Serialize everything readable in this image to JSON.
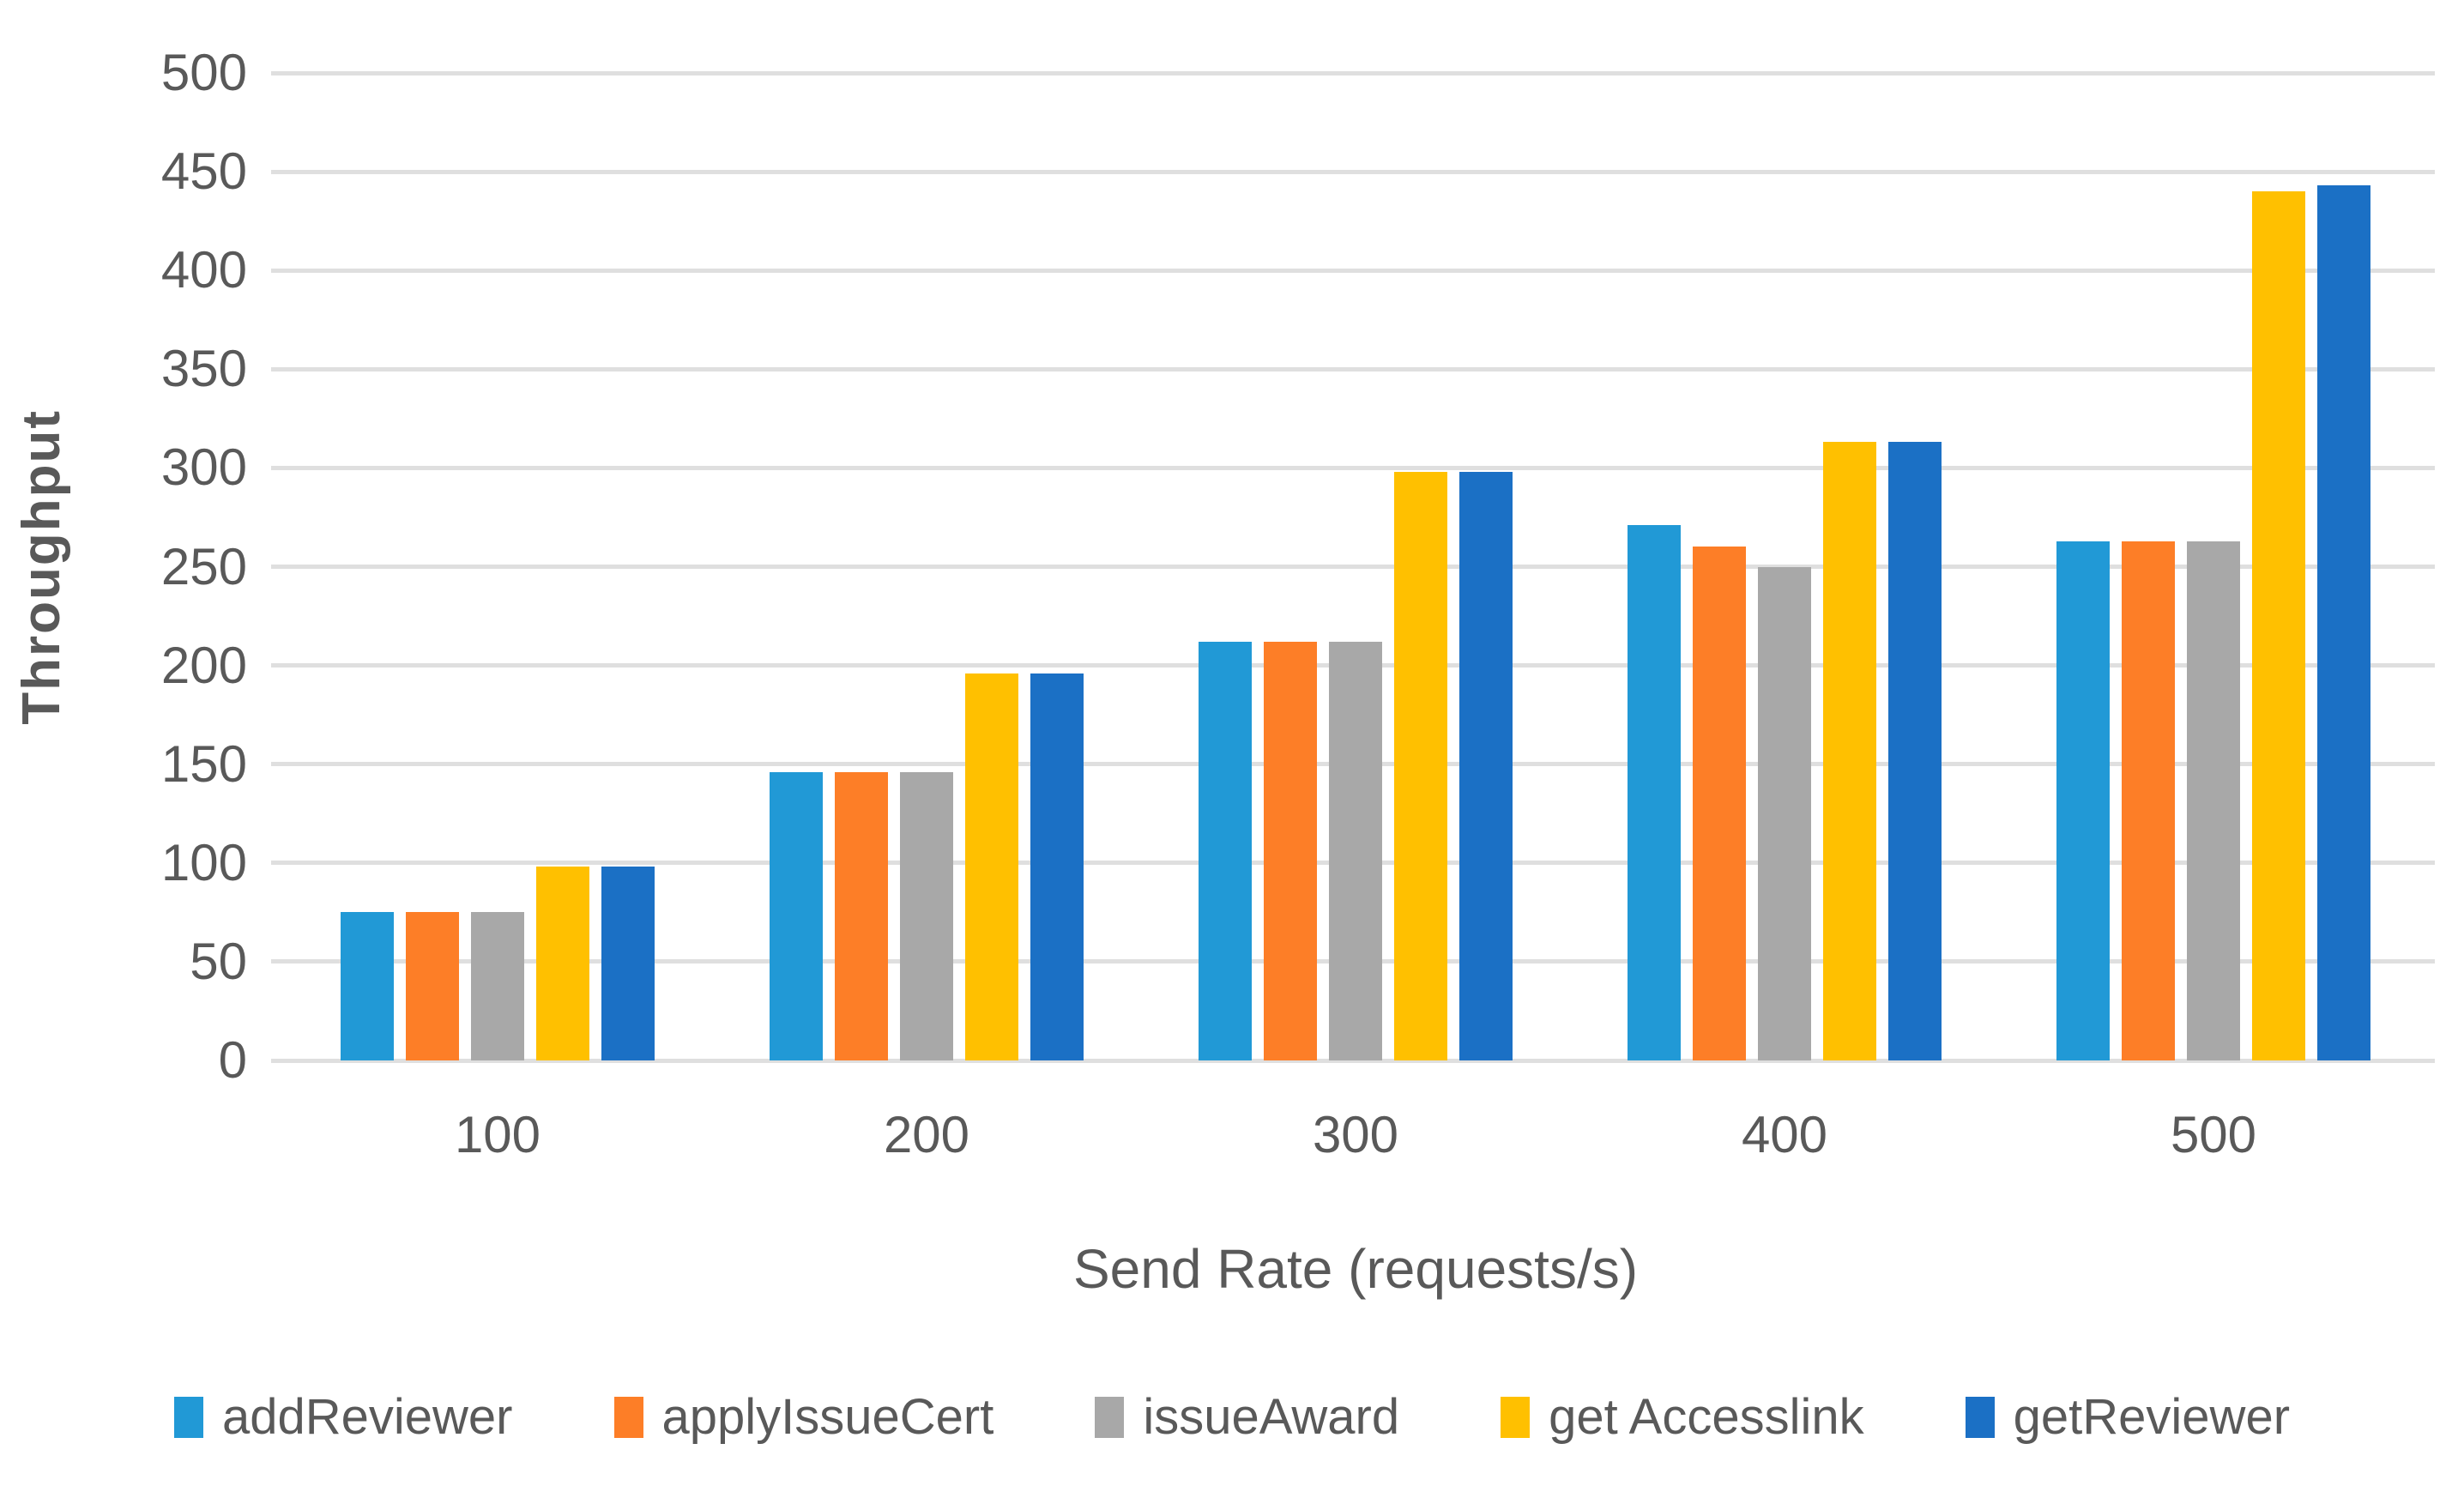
{
  "chart_data": {
    "type": "bar",
    "title": "",
    "xlabel": "Send Rate (requests/s)",
    "ylabel": "Throughput",
    "ylim": [
      0,
      500
    ],
    "ytick_step": 50,
    "y_ticks": [
      "500",
      "450",
      "400",
      "350",
      "300",
      "250",
      "200",
      "150",
      "100",
      "50",
      "0"
    ],
    "categories": [
      "100",
      "200",
      "300",
      "400",
      "500"
    ],
    "series": [
      {
        "name": "addReviewer",
        "color": "#2199D6",
        "values": [
          75,
          146,
          212,
          271,
          263
        ]
      },
      {
        "name": "applyIssueCert",
        "color": "#FD7E27",
        "values": [
          75,
          146,
          212,
          260,
          263
        ]
      },
      {
        "name": "issueAward",
        "color": "#A8A8A8",
        "values": [
          75,
          146,
          212,
          250,
          263
        ]
      },
      {
        "name": "get Accesslink",
        "color": "#FFC000",
        "values": [
          98,
          196,
          298,
          313,
          440
        ]
      },
      {
        "name": "getReviewer",
        "color": "#1B70C5",
        "values": [
          98,
          196,
          298,
          313,
          443
        ]
      }
    ],
    "grid": true,
    "legend_position": "bottom",
    "gridline_color": "#dfdfdf",
    "text_color": "#595959",
    "background_color": "#ffffff"
  }
}
